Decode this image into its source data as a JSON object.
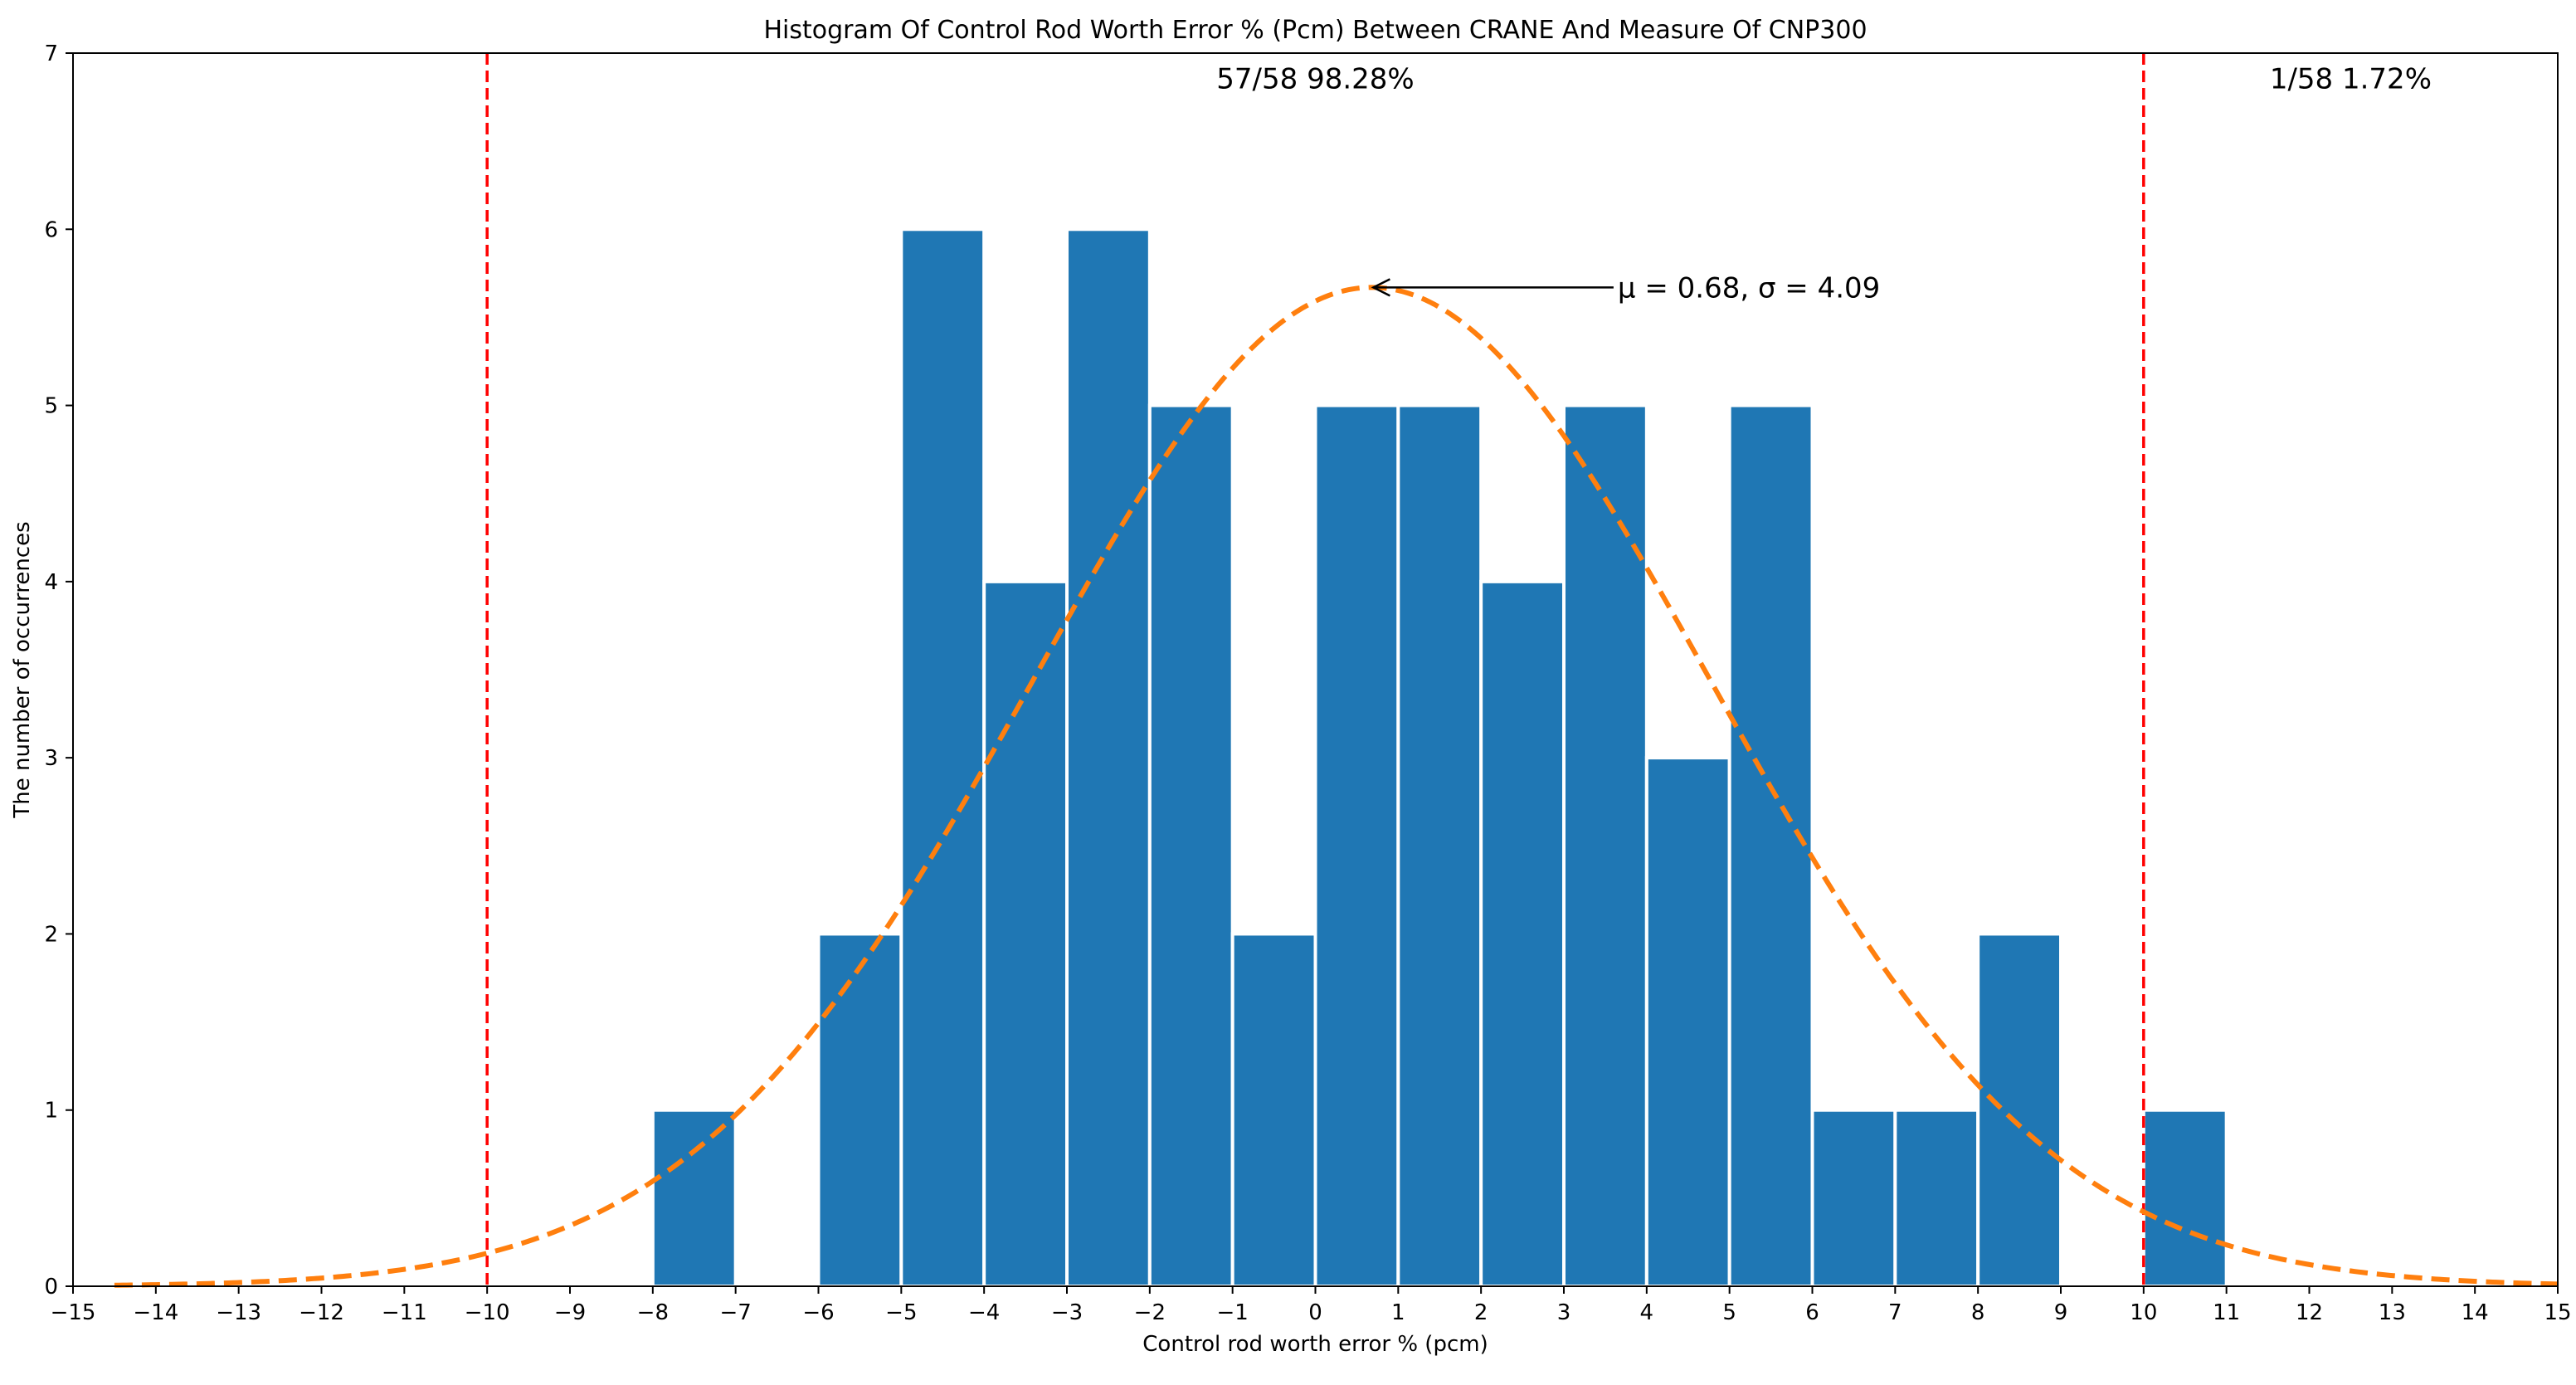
{
  "chart_data": {
    "type": "bar",
    "title": "Histogram Of Control Rod Worth Error % (Pcm) Between CRANE And Measure Of CNP300",
    "xlabel": "Control rod worth error % (pcm)",
    "ylabel": "The number of occurrences",
    "xlim": [
      -15,
      15
    ],
    "ylim": [
      0,
      7
    ],
    "x_ticks": [
      -15,
      -14,
      -13,
      -12,
      -11,
      -10,
      -9,
      -8,
      -7,
      -6,
      -5,
      -4,
      -3,
      -2,
      -1,
      0,
      1,
      2,
      3,
      4,
      5,
      6,
      7,
      8,
      9,
      10,
      11,
      12,
      13,
      14,
      15
    ],
    "x_tick_labels": [
      "−15",
      "−14",
      "−13",
      "−12",
      "−11",
      "−10",
      "−9",
      "−8",
      "−7",
      "−6",
      "−5",
      "−4",
      "−3",
      "−2",
      "−1",
      "0",
      "1",
      "2",
      "3",
      "4",
      "5",
      "6",
      "7",
      "8",
      "9",
      "10",
      "11",
      "12",
      "13",
      "14",
      "15"
    ],
    "y_ticks": [
      0,
      1,
      2,
      3,
      4,
      5,
      6,
      7
    ],
    "y_tick_labels": [
      "0",
      "1",
      "2",
      "3",
      "4",
      "5",
      "6",
      "7"
    ],
    "bins": [
      {
        "start": -8,
        "end": -7,
        "count": 1
      },
      {
        "start": -7,
        "end": -6,
        "count": 0
      },
      {
        "start": -6,
        "end": -5,
        "count": 2
      },
      {
        "start": -5,
        "end": -4,
        "count": 6
      },
      {
        "start": -4,
        "end": -3,
        "count": 4
      },
      {
        "start": -3,
        "end": -2,
        "count": 6
      },
      {
        "start": -2,
        "end": -1,
        "count": 5
      },
      {
        "start": -1,
        "end": 0,
        "count": 2
      },
      {
        "start": 0,
        "end": 1,
        "count": 5
      },
      {
        "start": 1,
        "end": 2,
        "count": 5
      },
      {
        "start": 2,
        "end": 3,
        "count": 4
      },
      {
        "start": 3,
        "end": 4,
        "count": 5
      },
      {
        "start": 4,
        "end": 5,
        "count": 3
      },
      {
        "start": 5,
        "end": 6,
        "count": 5
      },
      {
        "start": 6,
        "end": 7,
        "count": 1
      },
      {
        "start": 7,
        "end": 8,
        "count": 1
      },
      {
        "start": 8,
        "end": 9,
        "count": 2
      },
      {
        "start": 9,
        "end": 10,
        "count": 0
      },
      {
        "start": 10,
        "end": 11,
        "count": 1
      }
    ],
    "normal_curve": {
      "mu": 0.68,
      "sigma": 4.09,
      "peak": 5.67,
      "x_start": -14.5,
      "x_end": 15
    },
    "limits": [
      -10,
      10
    ],
    "annotations": {
      "inside": "57/58    98.28%",
      "outside": "1/58    1.72%",
      "fit": "μ = 0.68, σ = 4.09"
    },
    "grid": false,
    "colors": {
      "bar": "#1f77b4",
      "curve": "#ff7f0e",
      "limit": "#ff0000",
      "axis": "#000000"
    }
  }
}
